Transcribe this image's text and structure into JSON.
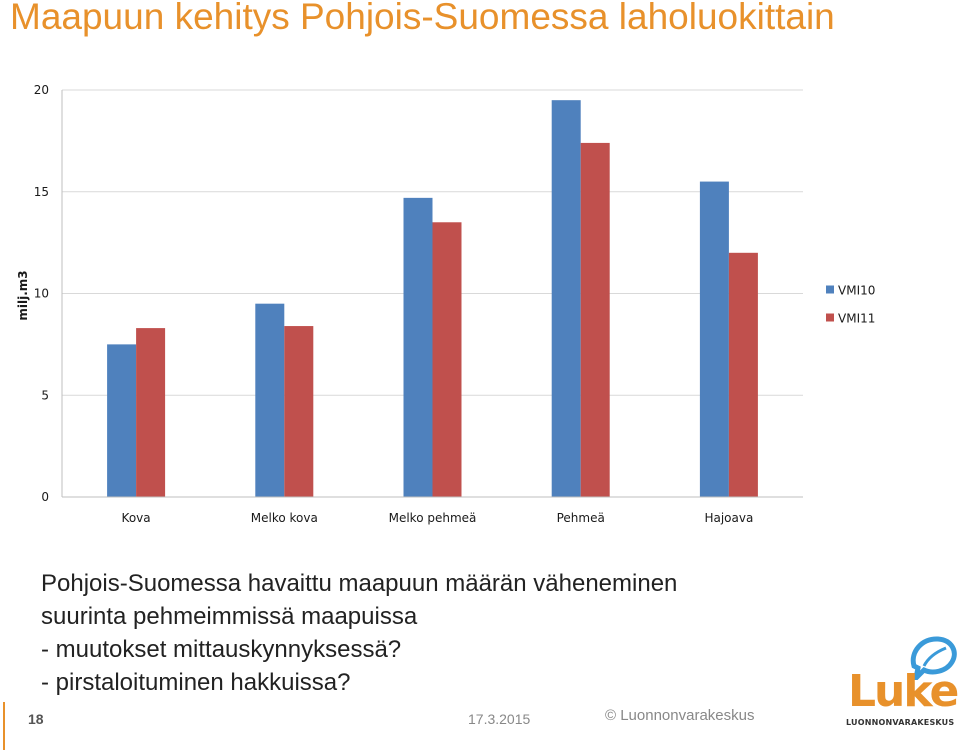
{
  "slide": {
    "title": "Maapuun kehitys Pohjois-Suomessa laholuokittain",
    "body_lines": [
      "Pohjois-Suomessa havaittu maapuun määrän väheneminen",
      "suurinta pehmeimmissä maapuissa",
      "-   muutokset mittauskynnyksessä?",
      "-   pirstaloituminen hakkuissa?"
    ],
    "page_number": "18",
    "date": "17.3.2015",
    "copyright": "© Luonnonvarakeskus",
    "logo": {
      "word": "Luke",
      "subtitle": "LUONNONVARAKESKUS",
      "icon": "leaf-speech-bubble-icon"
    }
  },
  "colors": {
    "title": "#e8912b",
    "vmi10": "#4f81bd",
    "vmi11": "#c0504d",
    "grid": "#d9d9d9"
  },
  "chart_data": {
    "type": "bar",
    "categories": [
      "Kova",
      "Melko kova",
      "Melko pehmeä",
      "Pehmeä",
      "Hajoava"
    ],
    "series": [
      {
        "name": "VMI10",
        "values": [
          7.5,
          9.5,
          14.7,
          19.5,
          15.5
        ]
      },
      {
        "name": "VMI11",
        "values": [
          8.3,
          8.4,
          13.5,
          17.4,
          12.0
        ]
      }
    ],
    "ylabel": "milj.m3",
    "ylim": [
      0,
      20
    ],
    "yticks": [
      0,
      5,
      10,
      15,
      20
    ],
    "grid": true,
    "legend": "right"
  }
}
